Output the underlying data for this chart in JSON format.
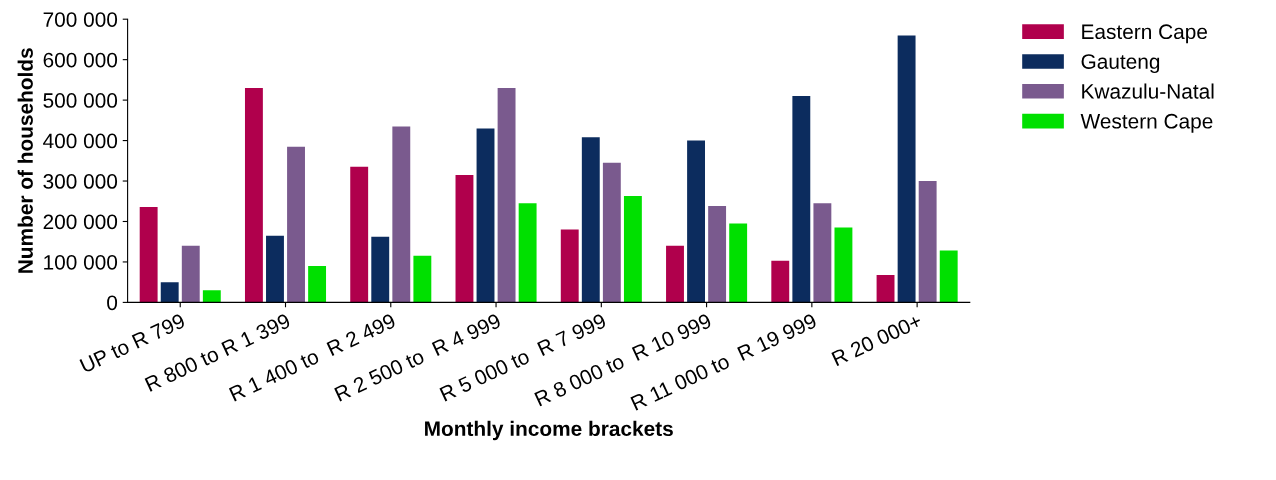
{
  "chart_data": {
    "type": "bar",
    "xlabel": "Monthly income brackets",
    "ylabel": "Number of households",
    "categories": [
      "UP to R 799",
      "R 800 to R 1 399",
      "R 1 400 to  R 2 499",
      "R 2 500 to  R 4 999",
      "R 5 000 to  R 7 999",
      "R 8 000 to  R 10 999",
      "R 11 000 to  R 19 999",
      "R 20 000+"
    ],
    "series": [
      {
        "name": "Eastern Cape",
        "color": "#b0004c",
        "values": [
          236000,
          530000,
          335000,
          315000,
          180000,
          140000,
          103000,
          68000
        ]
      },
      {
        "name": "Gauteng",
        "color": "#0c2c5e",
        "values": [
          50000,
          165000,
          162000,
          430000,
          408000,
          400000,
          510000,
          660000
        ]
      },
      {
        "name": "Kwazulu-Natal",
        "color": "#7a5a8e",
        "values": [
          140000,
          385000,
          435000,
          530000,
          345000,
          238000,
          245000,
          300000
        ]
      },
      {
        "name": "Western Cape",
        "color": "#00e000",
        "values": [
          30000,
          90000,
          115000,
          245000,
          263000,
          195000,
          185000,
          128000
        ]
      }
    ],
    "ylim": [
      0,
      700000
    ],
    "yticks": [
      {
        "value": 0,
        "label": "0"
      },
      {
        "value": 100000,
        "label": "100 000"
      },
      {
        "value": 200000,
        "label": "200 000"
      },
      {
        "value": 300000,
        "label": "300 000"
      },
      {
        "value": 400000,
        "label": "400 000"
      },
      {
        "value": 500000,
        "label": "500 000"
      },
      {
        "value": 600000,
        "label": "600 000"
      },
      {
        "value": 700000,
        "label": "700 000"
      }
    ],
    "grid": false,
    "legend": "right"
  }
}
